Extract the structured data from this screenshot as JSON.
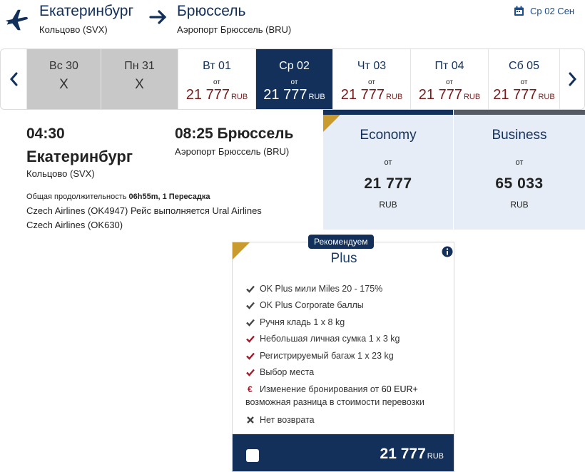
{
  "header": {
    "from_city": "Екатеринбург",
    "from_airport": "Кольцово (SVX)",
    "to_city": "Брюссель",
    "to_airport": "Аэропорт Брюссель (BRU)",
    "date_label": "Ср 02 Сен",
    "icons": [
      "plane-icon",
      "arrow-right-icon",
      "calendar-icon"
    ]
  },
  "date_strip": {
    "days": [
      {
        "name": "Вс 30",
        "status": "unavailable",
        "mark": "X"
      },
      {
        "name": "Пн 31",
        "status": "unavailable",
        "mark": "X"
      },
      {
        "name": "Вт 01",
        "from": "от",
        "price": "21 777",
        "currency": "RUB",
        "status": "available"
      },
      {
        "name": "Ср 02",
        "from": "от",
        "price": "21 777",
        "currency": "RUB",
        "status": "selected"
      },
      {
        "name": "Чт 03",
        "from": "от",
        "price": "21 777",
        "currency": "RUB",
        "status": "available"
      },
      {
        "name": "Пт 04",
        "from": "от",
        "price": "21 777",
        "currency": "RUB",
        "status": "available"
      },
      {
        "name": "Сб 05",
        "from": "от",
        "price": "21 777",
        "currency": "RUB",
        "status": "available"
      }
    ]
  },
  "flight": {
    "dep_time": "04:30",
    "dep_city": "Екатеринбург",
    "dep_airport": "Кольцово (SVX)",
    "arr_time_city": "08:25 Брюссель",
    "arr_airport": "Аэропорт Брюссель (BRU)",
    "duration_prefix": "Общая продолжительность",
    "duration_value": "06h55m, 1 Пересадка",
    "leg1": "Czech Airlines (OK4947) Рейс выполняется Ural Airlines",
    "leg2": "Czech Airlines (OK630)"
  },
  "fares": [
    {
      "name": "Economy",
      "from": "от",
      "amount": "21 777",
      "currency": "RUB"
    },
    {
      "name": "Business",
      "from": "от",
      "amount": "65 033",
      "currency": "RUB"
    }
  ],
  "plus": {
    "badge": "Рекомендуем",
    "title": "Plus",
    "features": [
      {
        "icon": "check-icon",
        "color": "#444444",
        "text": "OK Plus мили Miles 20 - 175%"
      },
      {
        "icon": "check-icon",
        "color": "#444444",
        "text": "OK Plus Corporate баллы"
      },
      {
        "icon": "check-icon",
        "color": "#444444",
        "text": "Ручня кладь 1 x 8 kg"
      },
      {
        "icon": "check-icon",
        "color": "#a31a2a",
        "text": "Небольшая личная сумка 1 x 3 kg"
      },
      {
        "icon": "check-icon",
        "color": "#a31a2a",
        "text": "Регистрируемый багаж 1 x 23 kg"
      },
      {
        "icon": "check-icon",
        "color": "#a31a2a",
        "text": "Выбор места"
      },
      {
        "icon": "euro-icon",
        "color": "#a31a2a",
        "symbol": "€",
        "text_a": "Изменение бронирования от",
        "text_b": "60 EUR+",
        "text_c": "возможная разница в стоимости перевозки"
      },
      {
        "icon": "x-icon",
        "color": "#444444",
        "text": "Нет возврата"
      }
    ],
    "price": "21 777",
    "currency": "RUB"
  },
  "colors": {
    "primary": "#12305a",
    "price_red": "#7a1a1a",
    "accent_gold": "#c99a2e",
    "fare_bg": "#e7edf6"
  }
}
